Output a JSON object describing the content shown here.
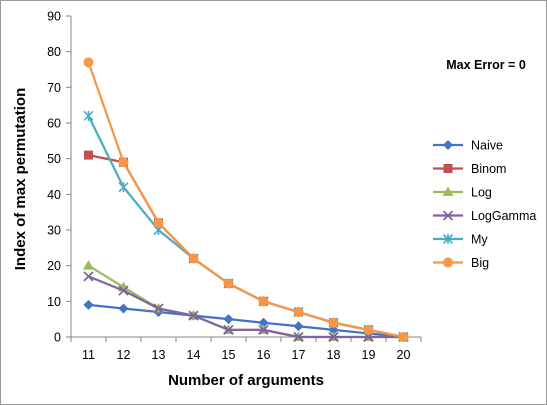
{
  "chart_data": {
    "type": "line",
    "title": "",
    "annotation": "Max Error = 0",
    "xlabel": "Number of arguments",
    "ylabel": "Index of max permutation",
    "categories": [
      "11",
      "12",
      "13",
      "14",
      "15",
      "16",
      "17",
      "18",
      "19",
      "20"
    ],
    "ylim": [
      0,
      90
    ],
    "yticks": [
      0,
      10,
      20,
      30,
      40,
      50,
      60,
      70,
      80,
      90
    ],
    "grid": false,
    "legend_position": "right",
    "series": [
      {
        "name": "Naive",
        "color": "#4472C4",
        "marker": "diamond",
        "values": [
          9,
          8,
          7,
          6,
          5,
          4,
          3,
          2,
          1,
          0
        ]
      },
      {
        "name": "Binom",
        "color": "#C0504D",
        "marker": "square",
        "values": [
          51,
          49,
          32,
          22,
          15,
          10,
          7,
          4,
          2,
          0
        ]
      },
      {
        "name": "Log",
        "color": "#9BBB59",
        "marker": "triangle",
        "values": [
          20,
          14,
          8,
          6,
          2,
          2,
          0,
          0,
          0,
          0
        ]
      },
      {
        "name": "LogGamma",
        "color": "#8064A2",
        "marker": "x",
        "values": [
          17,
          13,
          8,
          6,
          2,
          2,
          0,
          0,
          0,
          0
        ]
      },
      {
        "name": "My",
        "color": "#4BACC6",
        "marker": "star",
        "values": [
          62,
          42,
          30,
          22,
          15,
          10,
          7,
          4,
          2,
          0
        ]
      },
      {
        "name": "Big",
        "color": "#F79646",
        "marker": "circle",
        "values": [
          77,
          49,
          32,
          22,
          15,
          10,
          7,
          4,
          2,
          0
        ]
      }
    ]
  }
}
